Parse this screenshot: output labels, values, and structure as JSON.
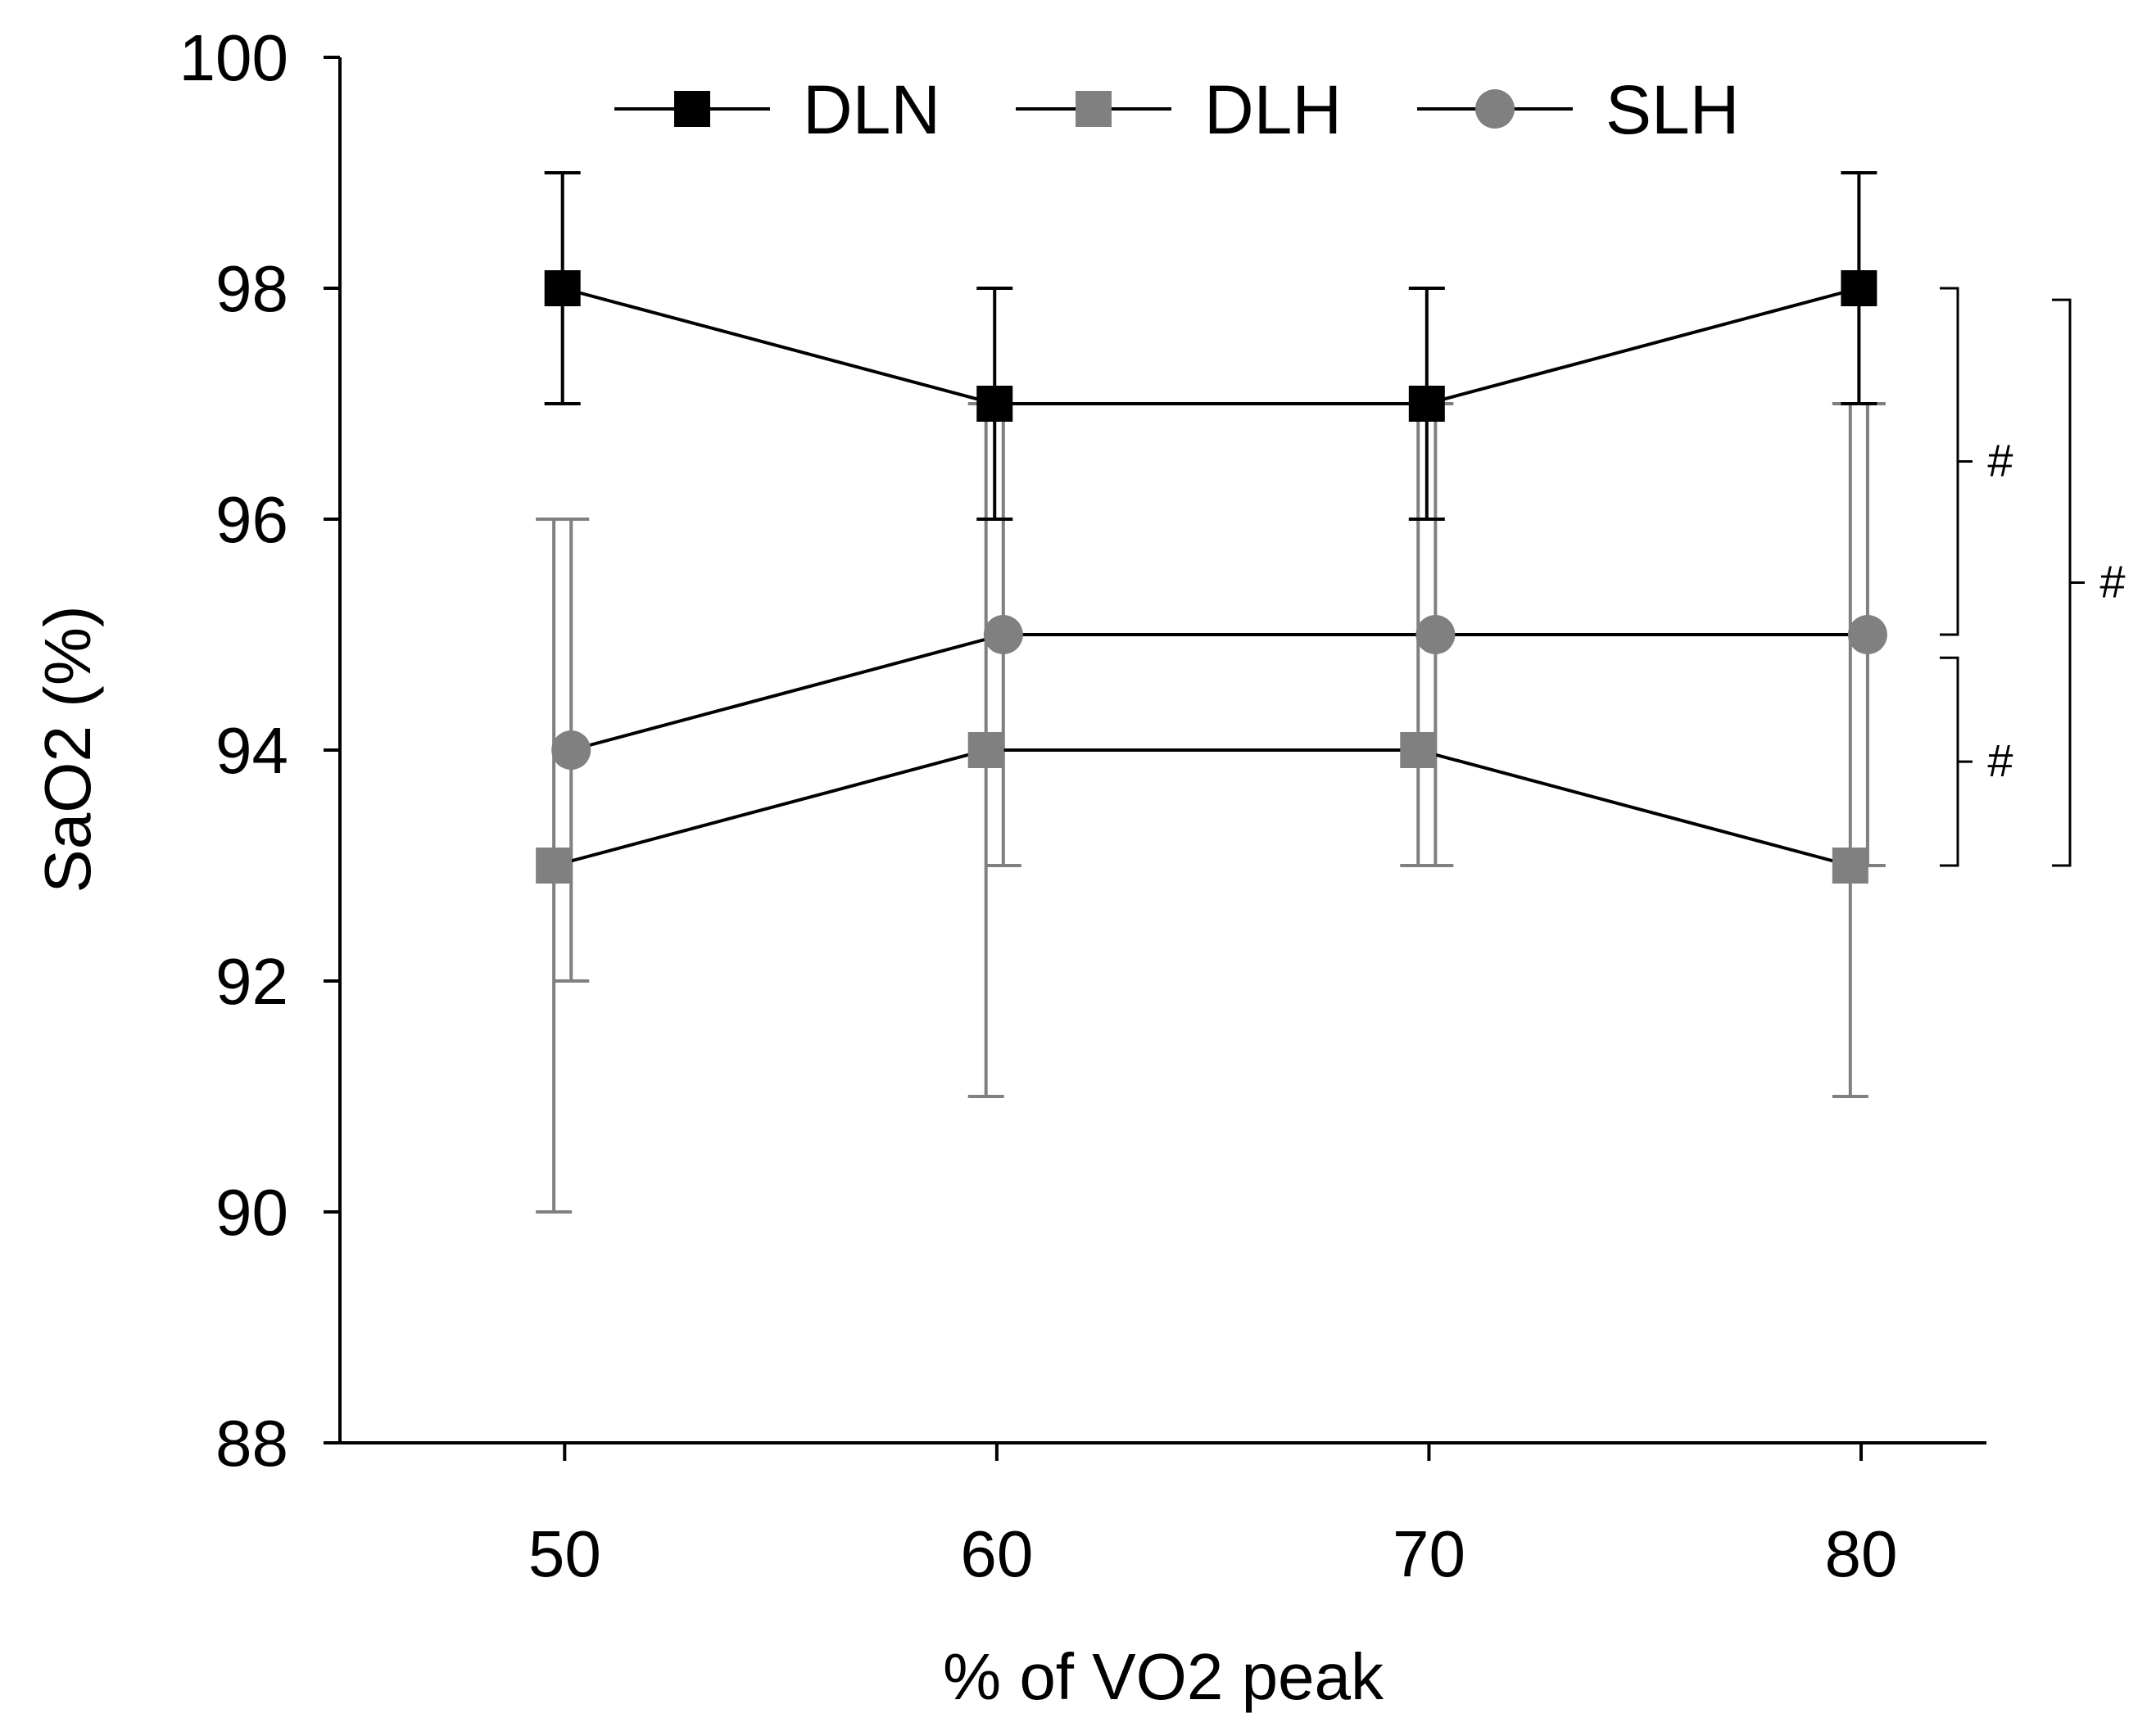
{
  "chart_data": {
    "type": "line",
    "title": "",
    "xlabel": "% of VO2 peak",
    "ylabel": "SaO2 (%)",
    "x": [
      50,
      60,
      70,
      80
    ],
    "xlim": [
      44.8,
      82.9
    ],
    "ylim": [
      88,
      100
    ],
    "xticks": [
      50,
      60,
      70,
      80
    ],
    "yticks": [
      88,
      90,
      92,
      94,
      96,
      98,
      100
    ],
    "grid": false,
    "legend_position": "top",
    "series": [
      {
        "name": "DLN",
        "color": "#000000",
        "marker": "square",
        "x_offset": -0.05,
        "values": [
          98,
          97,
          97,
          98
        ],
        "error_lower": [
          97,
          96,
          96,
          97
        ],
        "error_upper": [
          99,
          98,
          98,
          99
        ]
      },
      {
        "name": "DLH",
        "color": "#808080",
        "marker": "square",
        "x_offset": -0.25,
        "values": [
          93,
          94,
          94,
          93
        ],
        "error_lower": [
          90,
          91,
          93,
          91
        ],
        "error_upper": [
          96,
          97,
          97,
          97
        ]
      },
      {
        "name": "SLH",
        "color": "#808080",
        "marker": "circle",
        "x_offset": 0.15,
        "values": [
          94,
          95,
          95,
          95
        ],
        "error_lower": [
          92,
          93,
          93,
          93
        ],
        "error_upper": [
          96,
          97,
          97,
          97
        ]
      }
    ],
    "annotations": [
      {
        "label": "#",
        "y_from": 95,
        "y_to": 98
      },
      {
        "label": "#",
        "y_from": 93,
        "y_to": 94.8
      },
      {
        "label": "#",
        "y_from": 93,
        "y_to": 97.9
      }
    ]
  }
}
